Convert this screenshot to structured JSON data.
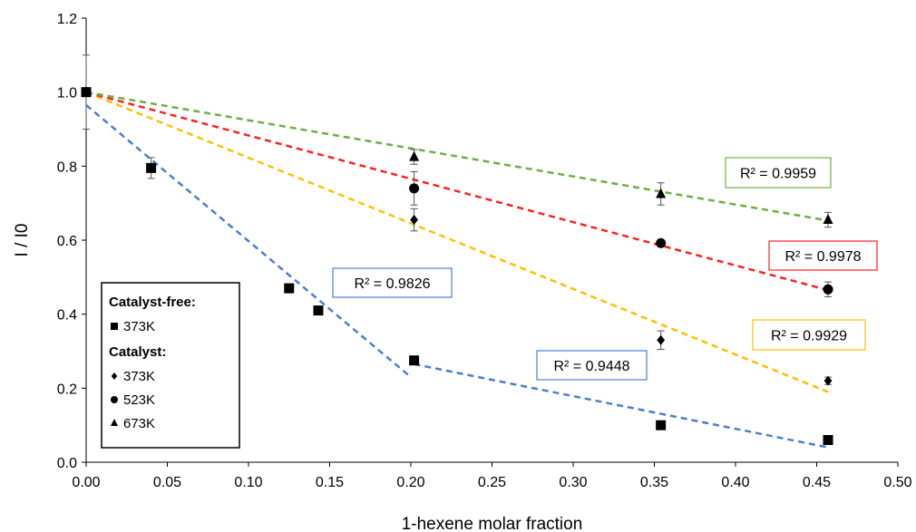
{
  "chart_data": {
    "type": "scatter",
    "xlabel": "1-hexene molar fraction",
    "ylabel": "I / I0",
    "xlim": [
      0,
      0.5
    ],
    "ylim": [
      0,
      1.2
    ],
    "xticks": [
      "0.00",
      "0.05",
      "0.10",
      "0.15",
      "0.20",
      "0.25",
      "0.30",
      "0.35",
      "0.40",
      "0.45",
      "0.50"
    ],
    "yticks": [
      "0.0",
      "0.2",
      "0.4",
      "0.6",
      "0.8",
      "1.0",
      "1.2"
    ],
    "grid": false,
    "legend": {
      "position": "bottom-left",
      "groups": [
        {
          "heading": "Catalyst-free:",
          "items": [
            {
              "marker": "square",
              "label": "373K"
            }
          ]
        },
        {
          "heading": "Catalyst:",
          "items": [
            {
              "marker": "diamond",
              "label": "373K"
            },
            {
              "marker": "circle",
              "label": "523K"
            },
            {
              "marker": "triangle",
              "label": "673K"
            }
          ]
        }
      ]
    },
    "series": [
      {
        "label": "Catalyst-free 373K",
        "marker": "square",
        "points": [
          [
            0.0,
            1.0
          ],
          [
            0.04,
            0.795
          ],
          [
            0.125,
            0.47
          ],
          [
            0.143,
            0.41
          ],
          [
            0.202,
            0.275
          ],
          [
            0.354,
            0.1
          ],
          [
            0.457,
            0.06
          ]
        ],
        "errors": [
          0.1,
          0.028,
          0,
          0,
          0,
          0,
          0
        ]
      },
      {
        "label": "Catalyst 373K",
        "marker": "diamond",
        "points": [
          [
            0.0,
            1.0
          ],
          [
            0.202,
            0.655
          ],
          [
            0.354,
            0.33
          ],
          [
            0.457,
            0.22
          ]
        ],
        "errors": [
          0,
          0.03,
          0.025,
          0.01
        ]
      },
      {
        "label": "Catalyst 523K",
        "marker": "circle",
        "points": [
          [
            0.0,
            1.0
          ],
          [
            0.202,
            0.74
          ],
          [
            0.354,
            0.592
          ],
          [
            0.457,
            0.467
          ]
        ],
        "errors": [
          0,
          0.045,
          0,
          0.02
        ]
      },
      {
        "label": "Catalyst 673K",
        "marker": "triangle",
        "points": [
          [
            0.0,
            1.0
          ],
          [
            0.202,
            0.825
          ],
          [
            0.354,
            0.725
          ],
          [
            0.457,
            0.655
          ]
        ],
        "errors": [
          0,
          0.02,
          0.03,
          0.02
        ]
      }
    ],
    "fits": [
      {
        "color": "#4a7fcf",
        "from": [
          0.0,
          0.965
        ],
        "to": [
          0.2,
          0.23
        ],
        "r2": "R² = 0.9826",
        "box": "#4a7fcf"
      },
      {
        "color": "#4a7fcf",
        "from": [
          0.202,
          0.265
        ],
        "to": [
          0.457,
          0.04
        ],
        "r2": "R² = 0.9448",
        "box": "#4a7fcf"
      },
      {
        "color": "#ffc000",
        "from": [
          0.0,
          1.0
        ],
        "to": [
          0.457,
          0.19
        ],
        "r2": "R² = 0.9929",
        "box": "#ffc000"
      },
      {
        "color": "#ff2020",
        "from": [
          0.0,
          1.0
        ],
        "to": [
          0.457,
          0.465
        ],
        "r2": "R² = 0.9978",
        "box": "#ff2020"
      },
      {
        "color": "#70ad47",
        "from": [
          0.0,
          1.0
        ],
        "to": [
          0.457,
          0.653
        ],
        "r2": "R² = 0.9959",
        "box": "#70ad47"
      }
    ]
  }
}
